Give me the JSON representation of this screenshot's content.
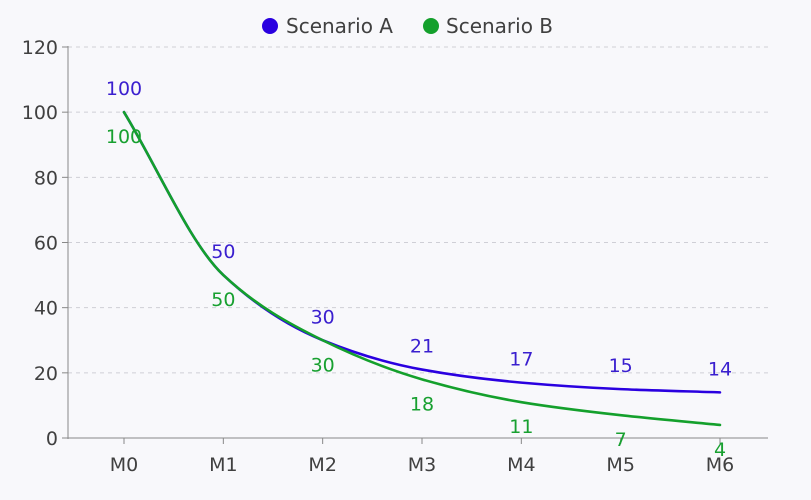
{
  "chart_data": {
    "type": "line",
    "title": "",
    "xlabel": "",
    "ylabel": "",
    "categories": [
      "M0",
      "M1",
      "M2",
      "M3",
      "M4",
      "M5",
      "M6"
    ],
    "ylim": [
      0,
      120
    ],
    "yticks": [
      0,
      20,
      40,
      60,
      80,
      100,
      120
    ],
    "grid": true,
    "legend_position": "top-center",
    "smooth": true,
    "series": [
      {
        "name": "Scenario A",
        "color": "#2a00e0",
        "label_color": "#3a1fcf",
        "values": [
          100,
          50,
          30,
          21,
          17,
          15,
          14
        ]
      },
      {
        "name": "Scenario B",
        "color": "#14a02c",
        "label_color": "#18a030",
        "values": [
          100,
          50,
          30,
          18,
          11,
          7,
          4
        ]
      }
    ]
  }
}
